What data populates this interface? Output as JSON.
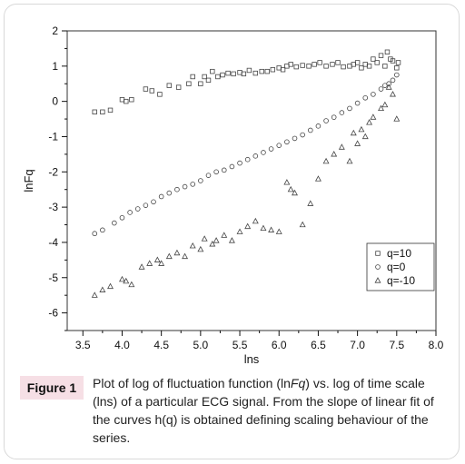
{
  "figure": {
    "label": "Figure 1",
    "caption_parts": [
      {
        "text": "Plot of log of fluctuation function (ln",
        "italic": false
      },
      {
        "text": "Fq",
        "italic": true
      },
      {
        "text": ") vs. log of time scale (lns) of a particular ECG signal. From the slope of linear fit of the curves h(q) is obtained defining scaling behaviour of the series.",
        "italic": false
      }
    ]
  },
  "chart_data": {
    "type": "scatter",
    "xlabel": "lns",
    "ylabel": "lnFq",
    "xlim": [
      3.3,
      8.0
    ],
    "ylim": [
      -6.5,
      2.0
    ],
    "xticks": [
      "3.5",
      "4.0",
      "4.5",
      "5.0",
      "5.5",
      "6.0",
      "6.5",
      "7.0",
      "7.5",
      "8.0"
    ],
    "yticks": [
      "2",
      "1",
      "0",
      "-1",
      "-2",
      "-3",
      "-4",
      "-5",
      "-6"
    ],
    "legend": {
      "placement": "bottom-right",
      "markers": [
        "square-icon",
        "circle-icon",
        "triangle-icon"
      ]
    },
    "colors": {
      "marker": "#444444",
      "axis": "#111111",
      "frame": "#333333"
    },
    "series": [
      {
        "name": "q=10",
        "marker": "square",
        "x": [
          3.65,
          3.75,
          3.85,
          4.0,
          4.05,
          4.12,
          4.3,
          4.38,
          4.48,
          4.6,
          4.72,
          4.85,
          4.9,
          5.0,
          5.05,
          5.1,
          5.15,
          5.22,
          5.28,
          5.35,
          5.42,
          5.5,
          5.55,
          5.62,
          5.7,
          5.78,
          5.85,
          5.92,
          6.0,
          6.05,
          6.1,
          6.15,
          6.22,
          6.3,
          6.38,
          6.45,
          6.52,
          6.6,
          6.68,
          6.75,
          6.82,
          6.9,
          6.95,
          7.0,
          7.05,
          7.1,
          7.15,
          7.2,
          7.25,
          7.3,
          7.35,
          7.38,
          7.42,
          7.45,
          7.5,
          7.52
        ],
        "y": [
          -0.3,
          -0.3,
          -0.25,
          0.05,
          0.0,
          0.05,
          0.35,
          0.3,
          0.2,
          0.45,
          0.4,
          0.5,
          0.7,
          0.5,
          0.7,
          0.6,
          0.85,
          0.7,
          0.75,
          0.8,
          0.78,
          0.82,
          0.78,
          0.88,
          0.8,
          0.85,
          0.85,
          0.9,
          0.95,
          0.9,
          1.0,
          1.05,
          0.98,
          1.02,
          1.0,
          1.05,
          1.1,
          1.0,
          1.05,
          1.1,
          0.98,
          1.0,
          1.05,
          1.1,
          0.95,
          1.05,
          1.0,
          1.2,
          1.1,
          1.3,
          1.0,
          1.4,
          1.2,
          1.15,
          0.95,
          1.1
        ]
      },
      {
        "name": "q=0",
        "marker": "circle",
        "x": [
          3.65,
          3.75,
          3.9,
          4.0,
          4.1,
          4.2,
          4.3,
          4.4,
          4.5,
          4.6,
          4.7,
          4.8,
          4.9,
          5.0,
          5.1,
          5.2,
          5.3,
          5.4,
          5.5,
          5.6,
          5.7,
          5.8,
          5.9,
          6.0,
          6.1,
          6.2,
          6.3,
          6.4,
          6.5,
          6.6,
          6.7,
          6.8,
          6.9,
          7.0,
          7.1,
          7.2,
          7.3,
          7.35,
          7.4,
          7.45,
          7.5
        ],
        "y": [
          -3.75,
          -3.65,
          -3.45,
          -3.3,
          -3.15,
          -3.05,
          -2.95,
          -2.85,
          -2.7,
          -2.6,
          -2.5,
          -2.42,
          -2.35,
          -2.25,
          -2.1,
          -2.0,
          -1.95,
          -1.85,
          -1.75,
          -1.65,
          -1.55,
          -1.45,
          -1.35,
          -1.25,
          -1.15,
          -1.05,
          -0.95,
          -0.82,
          -0.7,
          -0.55,
          -0.45,
          -0.32,
          -0.2,
          -0.05,
          0.1,
          0.2,
          0.35,
          0.45,
          0.5,
          0.6,
          0.75
        ]
      },
      {
        "name": "q=-10",
        "marker": "triangle",
        "x": [
          3.65,
          3.75,
          3.85,
          4.0,
          4.05,
          4.12,
          4.25,
          4.35,
          4.45,
          4.5,
          4.6,
          4.7,
          4.8,
          4.9,
          5.0,
          5.05,
          5.15,
          5.2,
          5.3,
          5.4,
          5.5,
          5.6,
          5.7,
          5.8,
          5.9,
          6.0,
          6.1,
          6.15,
          6.2,
          6.3,
          6.4,
          6.5,
          6.6,
          6.7,
          6.8,
          6.9,
          6.95,
          7.0,
          7.05,
          7.1,
          7.15,
          7.2,
          7.3,
          7.35,
          7.4,
          7.45,
          7.5
        ],
        "y": [
          -5.5,
          -5.35,
          -5.25,
          -5.05,
          -5.1,
          -5.2,
          -4.7,
          -4.6,
          -4.5,
          -4.6,
          -4.4,
          -4.3,
          -4.4,
          -4.1,
          -4.2,
          -3.9,
          -4.05,
          -3.95,
          -3.8,
          -3.95,
          -3.7,
          -3.55,
          -3.4,
          -3.6,
          -3.65,
          -3.7,
          -2.3,
          -2.5,
          -2.6,
          -3.5,
          -2.9,
          -2.2,
          -1.7,
          -1.5,
          -1.3,
          -1.7,
          -0.9,
          -1.2,
          -0.8,
          -1.0,
          -0.6,
          -0.45,
          -0.2,
          -0.1,
          0.4,
          0.2,
          -0.5
        ]
      }
    ]
  }
}
